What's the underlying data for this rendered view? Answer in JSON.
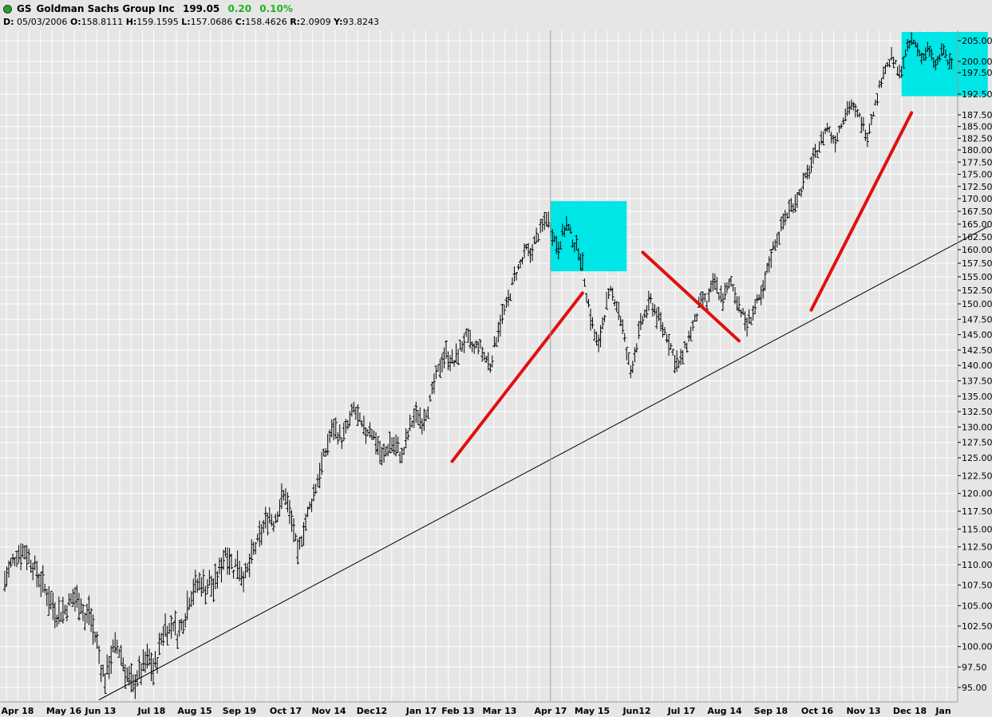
{
  "header": {
    "symbol": "GS",
    "company": "Goldman Sachs Group Inc",
    "last": "199.05",
    "change": "0.20",
    "change_pct": "0.10%",
    "change_color": "#22b022",
    "date_label": "D:",
    "date": "05/03/2006",
    "open_label": "O:",
    "open": "158.8111",
    "high_label": "H:",
    "high": "159.1595",
    "low_label": "L:",
    "low": "157.0686",
    "close_label": "C:",
    "close": "158.4626",
    "range_label": "R:",
    "range": "2.0909",
    "y_label": "Y:",
    "y": "93.8243"
  },
  "chart_data": {
    "type": "ohlc",
    "title": "GS Goldman Sachs Group Inc",
    "xlabel": "",
    "ylabel": "",
    "ylim": [
      93.5,
      207
    ],
    "y_ticks": [
      95,
      97.5,
      100,
      102.5,
      105,
      107.5,
      110,
      112.5,
      115,
      117.5,
      120,
      122.5,
      125,
      127.5,
      130,
      132.5,
      135,
      137.5,
      140,
      142.5,
      145,
      147.5,
      150,
      152.5,
      155,
      157.5,
      160,
      162.5,
      165,
      167.5,
      170,
      172.5,
      175,
      177.5,
      180,
      182.5,
      185,
      187.5,
      192.5,
      197.5,
      200,
      205
    ],
    "y_tick_labels": [
      "95.00",
      "97.50",
      "100.00",
      "102.50",
      "105.00",
      "107.50",
      "110.00",
      "112.50",
      "115.00",
      "117.50",
      "120.00",
      "122.50",
      "125.00",
      "127.50",
      "130.00",
      "132.50",
      "135.00",
      "137.50",
      "140.00",
      "142.50",
      "145.00",
      "147.50",
      "150.00",
      "152.50",
      "155.00",
      "157.50",
      "160.00",
      "162.50",
      "165.00",
      "167.50",
      "170.00",
      "172.50",
      "175.00",
      "177.50",
      "180.00",
      "182.50",
      "185.00",
      "187.50",
      "192.50",
      "197.50",
      "200.00",
      "205.00"
    ],
    "x_ticks": [
      "Apr 18",
      "May 16",
      "Jun 13",
      "Jul 18",
      "Aug 15",
      "Sep 19",
      "Oct 17",
      "Nov 14",
      "Dec12",
      "Jan 17",
      "Feb 13",
      "Mar 13",
      "Apr 17",
      "May 15",
      "Jun12",
      "Jul 17",
      "Aug 14",
      "Sep 18",
      "Oct 16",
      "Nov 13",
      "Dec 18",
      "Jan"
    ],
    "grid": true,
    "price_path": [
      [
        0,
        108
      ],
      [
        3,
        110
      ],
      [
        6,
        111.5
      ],
      [
        10,
        112
      ],
      [
        14,
        110
      ],
      [
        18,
        108
      ],
      [
        22,
        106
      ],
      [
        26,
        104
      ],
      [
        30,
        104.5
      ],
      [
        34,
        106
      ],
      [
        38,
        105.5
      ],
      [
        40,
        103
      ],
      [
        42,
        104.5
      ],
      [
        44,
        102
      ],
      [
        46,
        100.5
      ],
      [
        48,
        97.5
      ],
      [
        50,
        96
      ],
      [
        52,
        98
      ],
      [
        54,
        99.5
      ],
      [
        56,
        100
      ],
      [
        58,
        99
      ],
      [
        60,
        97
      ],
      [
        62,
        96
      ],
      [
        64,
        95
      ],
      [
        66,
        96.5
      ],
      [
        68,
        97
      ],
      [
        70,
        98
      ],
      [
        72,
        98.5
      ],
      [
        74,
        97
      ],
      [
        76,
        98.5
      ],
      [
        78,
        101
      ],
      [
        80,
        102.5
      ],
      [
        82,
        102
      ],
      [
        84,
        103
      ],
      [
        86,
        101.5
      ],
      [
        88,
        102.5
      ],
      [
        90,
        104
      ],
      [
        92,
        106
      ],
      [
        94,
        107
      ],
      [
        96,
        107.5
      ],
      [
        98,
        108
      ],
      [
        100,
        107
      ],
      [
        102,
        108
      ],
      [
        104,
        107
      ],
      [
        106,
        108.5
      ],
      [
        108,
        110
      ],
      [
        110,
        112
      ],
      [
        112,
        111
      ],
      [
        114,
        109.5
      ],
      [
        116,
        110.5
      ],
      [
        118,
        109
      ],
      [
        120,
        108.5
      ],
      [
        122,
        110
      ],
      [
        124,
        112
      ],
      [
        126,
        113
      ],
      [
        128,
        114.5
      ],
      [
        130,
        116
      ],
      [
        132,
        117
      ],
      [
        134,
        116
      ],
      [
        136,
        117.5
      ],
      [
        138,
        119
      ],
      [
        140,
        120
      ],
      [
        142,
        117
      ],
      [
        144,
        115
      ],
      [
        146,
        111
      ],
      [
        148,
        114
      ],
      [
        150,
        116
      ],
      [
        152,
        118
      ],
      [
        154,
        120
      ],
      [
        156,
        122
      ],
      [
        158,
        124
      ],
      [
        160,
        126
      ],
      [
        162,
        128.5
      ],
      [
        164,
        130
      ],
      [
        166,
        129
      ],
      [
        168,
        128
      ],
      [
        170,
        129.5
      ],
      [
        172,
        131
      ],
      [
        174,
        133
      ],
      [
        176,
        131.5
      ],
      [
        178,
        130
      ],
      [
        180,
        129
      ],
      [
        182,
        130
      ],
      [
        184,
        128.5
      ],
      [
        186,
        127
      ],
      [
        188,
        125
      ],
      [
        190,
        126
      ],
      [
        192,
        127.5
      ],
      [
        194,
        127
      ],
      [
        196,
        126.5
      ],
      [
        198,
        125
      ],
      [
        200,
        127.5
      ],
      [
        202,
        130
      ],
      [
        204,
        131.5
      ],
      [
        206,
        132
      ],
      [
        208,
        131
      ],
      [
        210,
        132.5
      ],
      [
        212,
        134
      ],
      [
        214,
        137
      ],
      [
        216,
        139
      ],
      [
        218,
        141
      ],
      [
        220,
        142
      ],
      [
        222,
        141
      ],
      [
        224,
        140.5
      ],
      [
        226,
        142
      ],
      [
        228,
        143.5
      ],
      [
        230,
        144.5
      ],
      [
        232,
        143.5
      ],
      [
        234,
        142.5
      ],
      [
        236,
        143.5
      ],
      [
        238,
        142
      ],
      [
        240,
        141
      ],
      [
        242,
        140
      ],
      [
        244,
        143
      ],
      [
        246,
        146
      ],
      [
        248,
        148
      ],
      [
        250,
        149.5
      ],
      [
        252,
        152
      ],
      [
        254,
        155
      ],
      [
        256,
        156.5
      ],
      [
        258,
        158
      ],
      [
        260,
        160
      ],
      [
        262,
        159
      ],
      [
        264,
        161.5
      ],
      [
        266,
        163
      ],
      [
        268,
        164.5
      ],
      [
        270,
        166.5
      ],
      [
        272,
        164.5
      ],
      [
        274,
        162
      ],
      [
        276,
        160.5
      ],
      [
        278,
        163
      ],
      [
        280,
        165
      ],
      [
        282,
        163
      ],
      [
        284,
        161
      ],
      [
        286,
        160
      ],
      [
        288,
        157
      ],
      [
        290,
        152
      ],
      [
        292,
        148
      ],
      [
        294,
        145
      ],
      [
        296,
        143
      ],
      [
        298,
        147
      ],
      [
        300,
        150
      ],
      [
        302,
        152
      ],
      [
        304,
        151
      ],
      [
        306,
        149
      ],
      [
        308,
        146
      ],
      [
        310,
        142
      ],
      [
        312,
        139
      ],
      [
        314,
        142
      ],
      [
        316,
        145
      ],
      [
        318,
        147.5
      ],
      [
        320,
        149
      ],
      [
        322,
        150.5
      ],
      [
        324,
        149
      ],
      [
        326,
        147.5
      ],
      [
        328,
        146
      ],
      [
        330,
        145
      ],
      [
        332,
        143
      ],
      [
        334,
        141
      ],
      [
        336,
        140
      ],
      [
        338,
        141.5
      ],
      [
        340,
        143.5
      ],
      [
        342,
        145.5
      ],
      [
        344,
        147
      ],
      [
        346,
        149.5
      ],
      [
        348,
        151
      ],
      [
        350,
        150
      ],
      [
        352,
        152.5
      ],
      [
        354,
        154
      ],
      [
        356,
        152
      ],
      [
        358,
        151
      ],
      [
        360,
        152.5
      ],
      [
        362,
        154
      ],
      [
        364,
        152
      ],
      [
        366,
        150
      ],
      [
        368,
        148
      ],
      [
        370,
        146.5
      ],
      [
        372,
        148
      ],
      [
        374,
        149.5
      ],
      [
        376,
        150.5
      ],
      [
        378,
        152
      ],
      [
        380,
        156
      ],
      [
        382,
        159
      ],
      [
        384,
        161.5
      ],
      [
        386,
        163
      ],
      [
        388,
        165.5
      ],
      [
        390,
        167
      ],
      [
        392,
        168.5
      ],
      [
        394,
        169.5
      ],
      [
        396,
        171
      ],
      [
        398,
        173
      ],
      [
        400,
        175
      ],
      [
        402,
        177
      ],
      [
        404,
        179
      ],
      [
        406,
        181
      ],
      [
        408,
        183
      ],
      [
        410,
        185
      ],
      [
        412,
        183
      ],
      [
        414,
        182
      ],
      [
        416,
        184.5
      ],
      [
        418,
        187
      ],
      [
        420,
        189
      ],
      [
        422,
        190
      ],
      [
        424,
        188
      ],
      [
        426,
        187
      ],
      [
        428,
        185
      ],
      [
        430,
        183
      ],
      [
        432,
        187
      ],
      [
        434,
        190
      ],
      [
        436,
        194
      ],
      [
        438,
        198
      ],
      [
        440,
        199
      ],
      [
        442,
        201
      ],
      [
        444,
        199
      ],
      [
        446,
        197
      ],
      [
        448,
        200
      ],
      [
        450,
        203
      ],
      [
        452,
        205
      ],
      [
        454,
        204
      ],
      [
        456,
        202
      ],
      [
        458,
        201
      ],
      [
        460,
        203
      ],
      [
        462,
        201
      ],
      [
        464,
        199
      ],
      [
        466,
        201
      ],
      [
        468,
        203
      ],
      [
        470,
        200
      ],
      [
        472,
        199
      ]
    ],
    "price_path_x_unit": "trading day index from first bar (Apr 18)",
    "highlight_boxes": [
      {
        "x": [
          272,
          310
        ],
        "y": [
          156,
          169.5
        ],
        "color": "#00e5e5"
      },
      {
        "x": [
          447,
          490
        ],
        "y": [
          192,
          207
        ],
        "color": "#00e5e5"
      }
    ],
    "trendlines": [
      {
        "from": [
          47,
          93.5
        ],
        "to": [
          490,
          164.5
        ],
        "color": "#000000",
        "width": 1
      },
      {
        "from": [
          223,
          124.5
        ],
        "to": [
          288,
          152
        ],
        "color": "#e01010",
        "width": 4
      },
      {
        "from": [
          318,
          159.5
        ],
        "to": [
          366,
          144
        ],
        "color": "#e01010",
        "width": 4
      },
      {
        "from": [
          402,
          149
        ],
        "to": [
          452,
          188
        ],
        "color": "#e01010",
        "width": 4
      }
    ],
    "cursor_x": 272
  }
}
